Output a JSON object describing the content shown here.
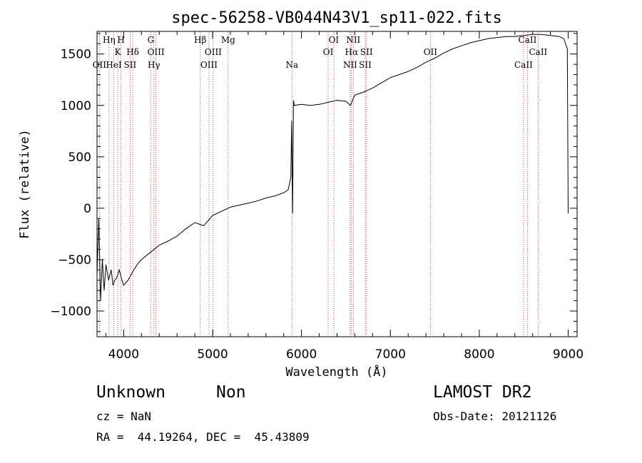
{
  "info": {
    "class": "Unknown",
    "subclass": "Non",
    "survey": "LAMOST DR2",
    "cz": "cz = NaN",
    "obs_date": "Obs-Date: 20121126",
    "coords": "RA =  44.19264, DEC =  45.43809"
  },
  "chart_data": {
    "type": "line",
    "title": "spec-56258-VB044N43V1_sp11-022.fits",
    "xlabel": "Wavelength (Å)",
    "ylabel": "Flux (relative)",
    "xlim": [
      3700,
      9100
    ],
    "ylim": [
      -1250,
      1720
    ],
    "xticks": [
      4000,
      5000,
      6000,
      7000,
      8000,
      9000
    ],
    "yticks": [
      -1000,
      -500,
      0,
      500,
      1000,
      1500
    ],
    "colors": {
      "spectrum": "#000000",
      "lines": "#b22222"
    },
    "series": [
      {
        "x": [
          3700,
          3720,
          3740,
          3760,
          3780,
          3800,
          3830,
          3860,
          3880,
          3900,
          3920,
          3950,
          3980,
          4000,
          4050,
          4100,
          4150,
          4200,
          4300,
          4400,
          4500,
          4600,
          4700,
          4800,
          4900,
          5000,
          5100,
          5200,
          5300,
          5400,
          5500,
          5600,
          5700,
          5800,
          5850,
          5880,
          5890,
          5900,
          5910,
          5920,
          6000,
          6100,
          6200,
          6300,
          6400,
          6500,
          6550,
          6600,
          6700,
          6800,
          6900,
          7000,
          7100,
          7200,
          7300,
          7400,
          7500,
          7600,
          7700,
          7800,
          7900,
          8000,
          8100,
          8200,
          8300,
          8400,
          8500,
          8600,
          8700,
          8800,
          8900,
          8950,
          8990,
          9000
        ],
        "y": [
          -650,
          -100,
          -900,
          -500,
          -800,
          -550,
          -700,
          -600,
          -750,
          -700,
          -680,
          -600,
          -700,
          -750,
          -700,
          -620,
          -550,
          -500,
          -430,
          -360,
          -320,
          -270,
          -200,
          -140,
          -170,
          -70,
          -30,
          10,
          30,
          50,
          70,
          100,
          120,
          150,
          180,
          300,
          850,
          -50,
          1050,
          1000,
          1010,
          1000,
          1010,
          1030,
          1050,
          1040,
          1000,
          1100,
          1130,
          1170,
          1220,
          1270,
          1300,
          1330,
          1370,
          1420,
          1460,
          1510,
          1550,
          1580,
          1610,
          1630,
          1650,
          1660,
          1670,
          1670,
          1680,
          1690,
          1690,
          1680,
          1670,
          1650,
          1550,
          -50
        ]
      }
    ],
    "lines": [
      {
        "x": 3727,
        "label": "OII",
        "row": 3
      },
      {
        "x": 3835,
        "label": "Hη",
        "row": 1
      },
      {
        "x": 3889,
        "label": "HeI",
        "row": 3
      },
      {
        "x": 3934,
        "label": "K",
        "row": 2
      },
      {
        "x": 3970,
        "label": "H",
        "row": 1
      },
      {
        "x": 4072,
        "label": "SII",
        "row": 3
      },
      {
        "x": 4102,
        "label": "Hδ",
        "row": 2
      },
      {
        "x": 4305,
        "label": "G",
        "row": 1
      },
      {
        "x": 4340,
        "label": "Hγ",
        "row": 3
      },
      {
        "x": 4363,
        "label": "OIII",
        "row": 2
      },
      {
        "x": 4861,
        "label": "Hβ",
        "row": 1
      },
      {
        "x": 4959,
        "label": "OIII",
        "row": 3
      },
      {
        "x": 5007,
        "label": "OIII",
        "row": 2
      },
      {
        "x": 5175,
        "label": "Mg",
        "row": 1
      },
      {
        "x": 5893,
        "label": "Na",
        "row": 3
      },
      {
        "x": 6300,
        "label": "OI",
        "row": 2
      },
      {
        "x": 6363,
        "label": "OI",
        "row": 1
      },
      {
        "x": 6548,
        "label": "NII",
        "row": 3
      },
      {
        "x": 6563,
        "label": "Hα",
        "row": 2
      },
      {
        "x": 6583,
        "label": "NII",
        "row": 1
      },
      {
        "x": 6717,
        "label": "SII",
        "row": 3
      },
      {
        "x": 6731,
        "label": "SII",
        "row": 2
      },
      {
        "x": 7450,
        "label": "OII",
        "row": 2
      },
      {
        "x": 8498,
        "label": "CaII",
        "row": 3
      },
      {
        "x": 8542,
        "label": "CaII",
        "row": 1
      },
      {
        "x": 8662,
        "label": "CaII",
        "row": 2
      }
    ]
  }
}
